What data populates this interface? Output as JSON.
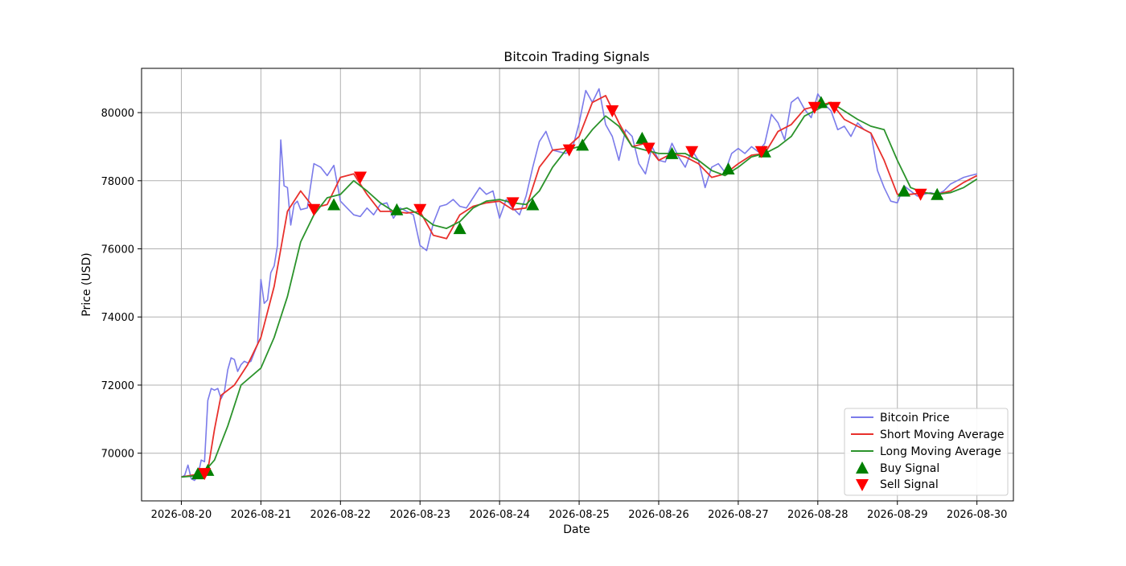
{
  "chart_data": {
    "type": "line",
    "title": "Bitcoin Trading Signals",
    "xlabel": "Date",
    "ylabel": "Price (USD)",
    "xlim": [
      "2026-08-19 12:00",
      "2026-08-30 11:00"
    ],
    "ylim": [
      68600,
      81300
    ],
    "x_ticks": [
      "2026-08-20",
      "2026-08-21",
      "2026-08-22",
      "2026-08-23",
      "2026-08-24",
      "2026-08-25",
      "2026-08-26",
      "2026-08-27",
      "2026-08-28",
      "2026-08-29",
      "2026-08-30"
    ],
    "y_ticks": [
      70000,
      72000,
      74000,
      76000,
      78000,
      80000
    ],
    "grid": true,
    "legend_position": "lower-right",
    "series": [
      {
        "name": "Bitcoin Price",
        "color": "#7b7bea",
        "x": [
          "2026-08-20 00:00",
          "2026-08-20 01:00",
          "2026-08-20 02:00",
          "2026-08-20 03:00",
          "2026-08-20 04:00",
          "2026-08-20 05:00",
          "2026-08-20 06:00",
          "2026-08-20 07:00",
          "2026-08-20 08:00",
          "2026-08-20 09:00",
          "2026-08-20 10:00",
          "2026-08-20 11:00",
          "2026-08-20 12:00",
          "2026-08-20 13:00",
          "2026-08-20 14:00",
          "2026-08-20 15:00",
          "2026-08-20 16:00",
          "2026-08-20 17:00",
          "2026-08-20 18:00",
          "2026-08-20 19:00",
          "2026-08-20 20:00",
          "2026-08-20 21:00",
          "2026-08-20 22:00",
          "2026-08-20 23:00",
          "2026-08-21 00:00",
          "2026-08-21 01:00",
          "2026-08-21 02:00",
          "2026-08-21 03:00",
          "2026-08-21 04:00",
          "2026-08-21 05:00",
          "2026-08-21 06:00",
          "2026-08-21 07:00",
          "2026-08-21 08:00",
          "2026-08-21 09:00",
          "2026-08-21 10:00",
          "2026-08-21 11:00",
          "2026-08-21 12:00",
          "2026-08-21 14:00",
          "2026-08-21 16:00",
          "2026-08-21 18:00",
          "2026-08-21 20:00",
          "2026-08-21 22:00",
          "2026-08-22 00:00",
          "2026-08-22 02:00",
          "2026-08-22 04:00",
          "2026-08-22 06:00",
          "2026-08-22 08:00",
          "2026-08-22 10:00",
          "2026-08-22 12:00",
          "2026-08-22 14:00",
          "2026-08-22 16:00",
          "2026-08-22 18:00",
          "2026-08-22 20:00",
          "2026-08-22 22:00",
          "2026-08-23 00:00",
          "2026-08-23 02:00",
          "2026-08-23 04:00",
          "2026-08-23 06:00",
          "2026-08-23 08:00",
          "2026-08-23 10:00",
          "2026-08-23 12:00",
          "2026-08-23 14:00",
          "2026-08-23 16:00",
          "2026-08-23 18:00",
          "2026-08-23 20:00",
          "2026-08-23 22:00",
          "2026-08-24 00:00",
          "2026-08-24 02:00",
          "2026-08-24 04:00",
          "2026-08-24 06:00",
          "2026-08-24 08:00",
          "2026-08-24 10:00",
          "2026-08-24 12:00",
          "2026-08-24 14:00",
          "2026-08-24 16:00",
          "2026-08-24 18:00",
          "2026-08-24 20:00",
          "2026-08-24 22:00",
          "2026-08-25 00:00",
          "2026-08-25 02:00",
          "2026-08-25 04:00",
          "2026-08-25 06:00",
          "2026-08-25 08:00",
          "2026-08-25 10:00",
          "2026-08-25 12:00",
          "2026-08-25 14:00",
          "2026-08-25 16:00",
          "2026-08-25 18:00",
          "2026-08-25 20:00",
          "2026-08-25 22:00",
          "2026-08-26 00:00",
          "2026-08-26 02:00",
          "2026-08-26 04:00",
          "2026-08-26 06:00",
          "2026-08-26 08:00",
          "2026-08-26 10:00",
          "2026-08-26 12:00",
          "2026-08-26 14:00",
          "2026-08-26 16:00",
          "2026-08-26 18:00",
          "2026-08-26 20:00",
          "2026-08-26 22:00",
          "2026-08-27 00:00",
          "2026-08-27 02:00",
          "2026-08-27 04:00",
          "2026-08-27 06:00",
          "2026-08-27 08:00",
          "2026-08-27 10:00",
          "2026-08-27 12:00",
          "2026-08-27 14:00",
          "2026-08-27 16:00",
          "2026-08-27 18:00",
          "2026-08-27 20:00",
          "2026-08-27 22:00",
          "2026-08-28 00:00",
          "2026-08-28 02:00",
          "2026-08-28 04:00",
          "2026-08-28 06:00",
          "2026-08-28 08:00",
          "2026-08-28 10:00",
          "2026-08-28 12:00",
          "2026-08-28 14:00",
          "2026-08-28 16:00",
          "2026-08-28 18:00",
          "2026-08-28 20:00",
          "2026-08-28 22:00",
          "2026-08-29 00:00",
          "2026-08-29 02:00",
          "2026-08-29 04:00",
          "2026-08-29 06:00",
          "2026-08-29 08:00",
          "2026-08-29 10:00",
          "2026-08-29 12:00",
          "2026-08-29 14:00",
          "2026-08-29 16:00",
          "2026-08-29 18:00",
          "2026-08-29 20:00",
          "2026-08-29 22:00",
          "2026-08-30 00:00"
        ],
        "values": [
          69300,
          69350,
          69650,
          69250,
          69200,
          69350,
          69800,
          69750,
          71550,
          71900,
          71850,
          71900,
          71600,
          71800,
          72450,
          72800,
          72750,
          72400,
          72600,
          72700,
          72650,
          72700,
          72950,
          73200,
          75100,
          74400,
          74500,
          75300,
          75500,
          76100,
          79200,
          77850,
          77800,
          76700,
          77300,
          77400,
          77150,
          77200,
          78500,
          78400,
          78150,
          78450,
          77400,
          77200,
          77000,
          76950,
          77200,
          77000,
          77300,
          77350,
          76900,
          77200,
          77100,
          77000,
          76100,
          75950,
          76750,
          77250,
          77300,
          77450,
          77250,
          77200,
          77500,
          77800,
          77600,
          77700,
          76900,
          77450,
          77200,
          77000,
          77550,
          78400,
          79150,
          79450,
          78900,
          78850,
          78800,
          78950,
          79700,
          80650,
          80300,
          80700,
          79650,
          79300,
          78600,
          79500,
          79300,
          78500,
          78200,
          79000,
          78600,
          78550,
          79100,
          78700,
          78400,
          78900,
          78600,
          77800,
          78400,
          78500,
          78250,
          78800,
          78950,
          78800,
          79000,
          78850,
          79100,
          79950,
          79700,
          79200,
          80300,
          80450,
          80100,
          79850,
          80550,
          80250,
          80050,
          79500,
          79600,
          79300,
          79700,
          79500,
          79400,
          78300,
          77800,
          77400,
          77350,
          77850,
          77700,
          77550,
          77600,
          77650,
          77600,
          77700,
          77900,
          78000,
          78100,
          78150,
          78200
        ]
      },
      {
        "name": "Short Moving Average",
        "color": "#e8302c",
        "x": [
          "2026-08-20 00:00",
          "2026-08-20 06:00",
          "2026-08-20 08:00",
          "2026-08-20 10:00",
          "2026-08-20 12:00",
          "2026-08-20 16:00",
          "2026-08-20 20:00",
          "2026-08-21 00:00",
          "2026-08-21 04:00",
          "2026-08-21 08:00",
          "2026-08-21 12:00",
          "2026-08-21 16:00",
          "2026-08-21 20:00",
          "2026-08-22 00:00",
          "2026-08-22 04:00",
          "2026-08-22 08:00",
          "2026-08-22 12:00",
          "2026-08-22 16:00",
          "2026-08-22 20:00",
          "2026-08-23 00:00",
          "2026-08-23 04:00",
          "2026-08-23 08:00",
          "2026-08-23 12:00",
          "2026-08-23 16:00",
          "2026-08-23 20:00",
          "2026-08-24 00:00",
          "2026-08-24 04:00",
          "2026-08-24 08:00",
          "2026-08-24 12:00",
          "2026-08-24 16:00",
          "2026-08-24 20:00",
          "2026-08-25 00:00",
          "2026-08-25 04:00",
          "2026-08-25 08:00",
          "2026-08-25 12:00",
          "2026-08-25 16:00",
          "2026-08-25 20:00",
          "2026-08-26 00:00",
          "2026-08-26 04:00",
          "2026-08-26 08:00",
          "2026-08-26 12:00",
          "2026-08-26 16:00",
          "2026-08-26 20:00",
          "2026-08-27 00:00",
          "2026-08-27 04:00",
          "2026-08-27 08:00",
          "2026-08-27 12:00",
          "2026-08-27 16:00",
          "2026-08-27 20:00",
          "2026-08-28 00:00",
          "2026-08-28 04:00",
          "2026-08-28 08:00",
          "2026-08-28 12:00",
          "2026-08-28 16:00",
          "2026-08-28 20:00",
          "2026-08-29 00:00",
          "2026-08-29 04:00",
          "2026-08-29 08:00",
          "2026-08-29 12:00",
          "2026-08-29 16:00",
          "2026-08-29 20:00",
          "2026-08-30 00:00"
        ],
        "values": [
          69300,
          69400,
          69500,
          70700,
          71700,
          72000,
          72600,
          73400,
          74900,
          77100,
          77700,
          77200,
          77300,
          78100,
          78200,
          77600,
          77100,
          77100,
          77050,
          77100,
          76400,
          76300,
          77000,
          77250,
          77350,
          77400,
          77150,
          77200,
          78400,
          78900,
          78950,
          79300,
          80300,
          80500,
          79700,
          79000,
          79100,
          78600,
          78800,
          78700,
          78500,
          78100,
          78200,
          78500,
          78750,
          78800,
          79450,
          79650,
          80100,
          80200,
          80300,
          79800,
          79600,
          79400,
          78600,
          77600,
          77600,
          77650,
          77600,
          77700,
          77950,
          78150
        ]
      },
      {
        "name": "Long Moving Average",
        "color": "#2b932b",
        "x": [
          "2026-08-20 00:00",
          "2026-08-20 06:00",
          "2026-08-20 10:00",
          "2026-08-20 14:00",
          "2026-08-20 18:00",
          "2026-08-21 00:00",
          "2026-08-21 04:00",
          "2026-08-21 08:00",
          "2026-08-21 12:00",
          "2026-08-21 16:00",
          "2026-08-21 20:00",
          "2026-08-22 00:00",
          "2026-08-22 04:00",
          "2026-08-22 08:00",
          "2026-08-22 12:00",
          "2026-08-22 16:00",
          "2026-08-22 20:00",
          "2026-08-23 00:00",
          "2026-08-23 04:00",
          "2026-08-23 08:00",
          "2026-08-23 12:00",
          "2026-08-23 16:00",
          "2026-08-23 20:00",
          "2026-08-24 00:00",
          "2026-08-24 04:00",
          "2026-08-24 08:00",
          "2026-08-24 12:00",
          "2026-08-24 16:00",
          "2026-08-24 20:00",
          "2026-08-25 00:00",
          "2026-08-25 04:00",
          "2026-08-25 08:00",
          "2026-08-25 12:00",
          "2026-08-25 16:00",
          "2026-08-25 20:00",
          "2026-08-26 00:00",
          "2026-08-26 04:00",
          "2026-08-26 08:00",
          "2026-08-26 12:00",
          "2026-08-26 16:00",
          "2026-08-26 20:00",
          "2026-08-27 00:00",
          "2026-08-27 04:00",
          "2026-08-27 08:00",
          "2026-08-27 12:00",
          "2026-08-27 16:00",
          "2026-08-27 20:00",
          "2026-08-28 00:00",
          "2026-08-28 04:00",
          "2026-08-28 08:00",
          "2026-08-28 12:00",
          "2026-08-28 16:00",
          "2026-08-28 20:00",
          "2026-08-29 00:00",
          "2026-08-29 04:00",
          "2026-08-29 08:00",
          "2026-08-29 12:00",
          "2026-08-29 16:00",
          "2026-08-29 20:00",
          "2026-08-30 00:00"
        ],
        "values": [
          69300,
          69350,
          69800,
          70800,
          72000,
          72500,
          73400,
          74600,
          76200,
          77000,
          77500,
          77600,
          78000,
          77700,
          77350,
          77100,
          77200,
          77000,
          76700,
          76600,
          76800,
          77200,
          77400,
          77450,
          77350,
          77300,
          77700,
          78400,
          78900,
          79000,
          79500,
          79900,
          79600,
          79000,
          78900,
          78800,
          78800,
          78800,
          78600,
          78300,
          78150,
          78400,
          78700,
          78800,
          79000,
          79300,
          79900,
          80100,
          80300,
          80050,
          79800,
          79600,
          79500,
          78600,
          77800,
          77650,
          77600,
          77650,
          77800,
          78050
        ]
      }
    ],
    "buy_signals": {
      "name": "Buy Signal",
      "color": "#008000",
      "x": [
        "2026-08-20 05:00",
        "2026-08-20 08:00",
        "2026-08-21 22:00",
        "2026-08-22 17:00",
        "2026-08-23 12:00",
        "2026-08-24 10:00",
        "2026-08-25 01:00",
        "2026-08-25 19:00",
        "2026-08-26 04:00",
        "2026-08-26 21:00",
        "2026-08-27 08:00",
        "2026-08-28 01:00",
        "2026-08-29 02:00",
        "2026-08-29 12:00"
      ],
      "values": [
        69400,
        69500,
        77300,
        77150,
        76600,
        77300,
        79050,
        79250,
        78800,
        78350,
        78850,
        80300,
        77700,
        77600
      ]
    },
    "sell_signals": {
      "name": "Sell Signal",
      "color": "#ff0000",
      "x": [
        "2026-08-20 07:00",
        "2026-08-21 16:00",
        "2026-08-22 06:00",
        "2026-08-23 00:00",
        "2026-08-24 04:00",
        "2026-08-24 21:00",
        "2026-08-25 10:00",
        "2026-08-25 21:00",
        "2026-08-26 10:00",
        "2026-08-27 07:00",
        "2026-08-27 23:00",
        "2026-08-28 05:00",
        "2026-08-29 07:00"
      ],
      "values": [
        69400,
        77150,
        78100,
        77150,
        77350,
        78900,
        80050,
        78950,
        78850,
        78850,
        80150,
        80150,
        77600
      ]
    }
  }
}
